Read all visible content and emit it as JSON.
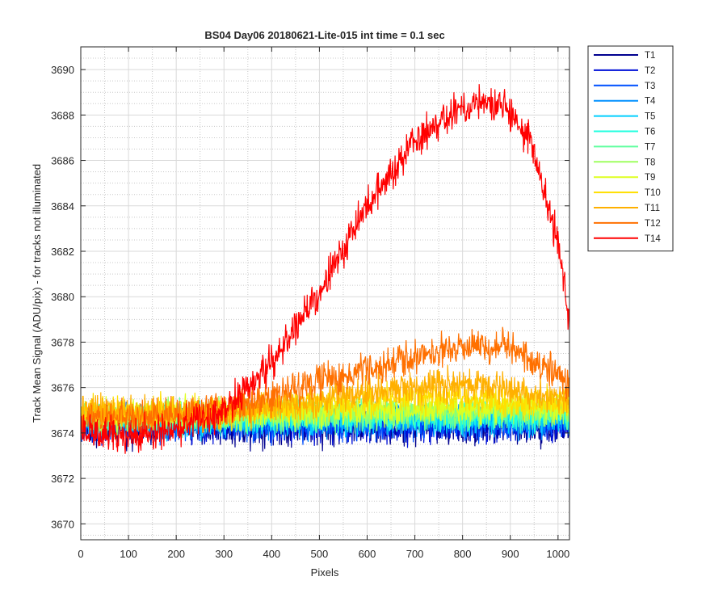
{
  "chart_data": {
    "type": "line",
    "title": "BS04 Day06 20180621-Lite-015 int time = 0.1 sec",
    "xlabel": "Pixels",
    "ylabel": "Track Mean Signal (ADU/pix) - for tracks not illuminated",
    "xlim": [
      0,
      1024
    ],
    "ylim": [
      3669.3,
      3691.0
    ],
    "x_ticks": [
      0,
      100,
      200,
      300,
      400,
      500,
      600,
      700,
      800,
      900,
      1000
    ],
    "y_ticks": [
      3670,
      3672,
      3674,
      3676,
      3678,
      3680,
      3682,
      3684,
      3686,
      3688,
      3690
    ],
    "grid": true,
    "minor_grid": true,
    "legend_position": "outside-top-right",
    "n_points": 1024,
    "series": [
      {
        "name": "T1",
        "color": "#00008f",
        "baseline": [
          [
            0,
            3674.3
          ],
          [
            1024,
            3674.3
          ]
        ],
        "noise": 1.25
      },
      {
        "name": "T2",
        "color": "#0010d8",
        "baseline": [
          [
            0,
            3674.4
          ],
          [
            1024,
            3674.4
          ]
        ],
        "noise": 1.2
      },
      {
        "name": "T3",
        "color": "#0050ff",
        "baseline": [
          [
            0,
            3674.4
          ],
          [
            1024,
            3674.5
          ]
        ],
        "noise": 1.15
      },
      {
        "name": "T4",
        "color": "#0090ff",
        "baseline": [
          [
            0,
            3674.5
          ],
          [
            1024,
            3674.6
          ]
        ],
        "noise": 1.1
      },
      {
        "name": "T5",
        "color": "#00cfff",
        "baseline": [
          [
            0,
            3674.5
          ],
          [
            1024,
            3674.7
          ]
        ],
        "noise": 1.05
      },
      {
        "name": "T6",
        "color": "#20ffdf",
        "baseline": [
          [
            0,
            3674.6
          ],
          [
            1024,
            3674.8
          ]
        ],
        "noise": 1.0
      },
      {
        "name": "T7",
        "color": "#60ff9f",
        "baseline": [
          [
            0,
            3674.6
          ],
          [
            1024,
            3674.9
          ]
        ],
        "noise": 1.0
      },
      {
        "name": "T8",
        "color": "#9fff60",
        "baseline": [
          [
            0,
            3674.7
          ],
          [
            1024,
            3675.0
          ]
        ],
        "noise": 1.0
      },
      {
        "name": "T9",
        "color": "#dfff20",
        "baseline": [
          [
            0,
            3674.8
          ],
          [
            1024,
            3675.2
          ]
        ],
        "noise": 1.0
      },
      {
        "name": "T10",
        "color": "#ffdf00",
        "baseline": [
          [
            0,
            3674.9
          ],
          [
            300,
            3674.9
          ],
          [
            700,
            3675.6
          ],
          [
            1024,
            3675.2
          ]
        ],
        "noise": 1.0
      },
      {
        "name": "T11",
        "color": "#ffb000",
        "baseline": [
          [
            0,
            3674.9
          ],
          [
            300,
            3674.9
          ],
          [
            600,
            3675.8
          ],
          [
            800,
            3676.2
          ],
          [
            1024,
            3675.5
          ]
        ],
        "noise": 1.05
      },
      {
        "name": "T12",
        "color": "#ff7000",
        "baseline": [
          [
            0,
            3674.6
          ],
          [
            300,
            3675.0
          ],
          [
            500,
            3676.2
          ],
          [
            700,
            3677.3
          ],
          [
            800,
            3677.8
          ],
          [
            900,
            3677.8
          ],
          [
            1024,
            3676.2
          ]
        ],
        "noise": 1.05
      },
      {
        "name": "T14",
        "color": "#ff0000",
        "baseline": [
          [
            0,
            3674.0
          ],
          [
            100,
            3673.8
          ],
          [
            200,
            3674.2
          ],
          [
            300,
            3675.0
          ],
          [
            400,
            3677.0
          ],
          [
            500,
            3680.2
          ],
          [
            600,
            3684.0
          ],
          [
            700,
            3687.0
          ],
          [
            800,
            3688.3
          ],
          [
            880,
            3688.5
          ],
          [
            940,
            3687.0
          ],
          [
            1000,
            3682.5
          ],
          [
            1024,
            3679.0
          ]
        ],
        "noise": 1.15
      }
    ]
  }
}
